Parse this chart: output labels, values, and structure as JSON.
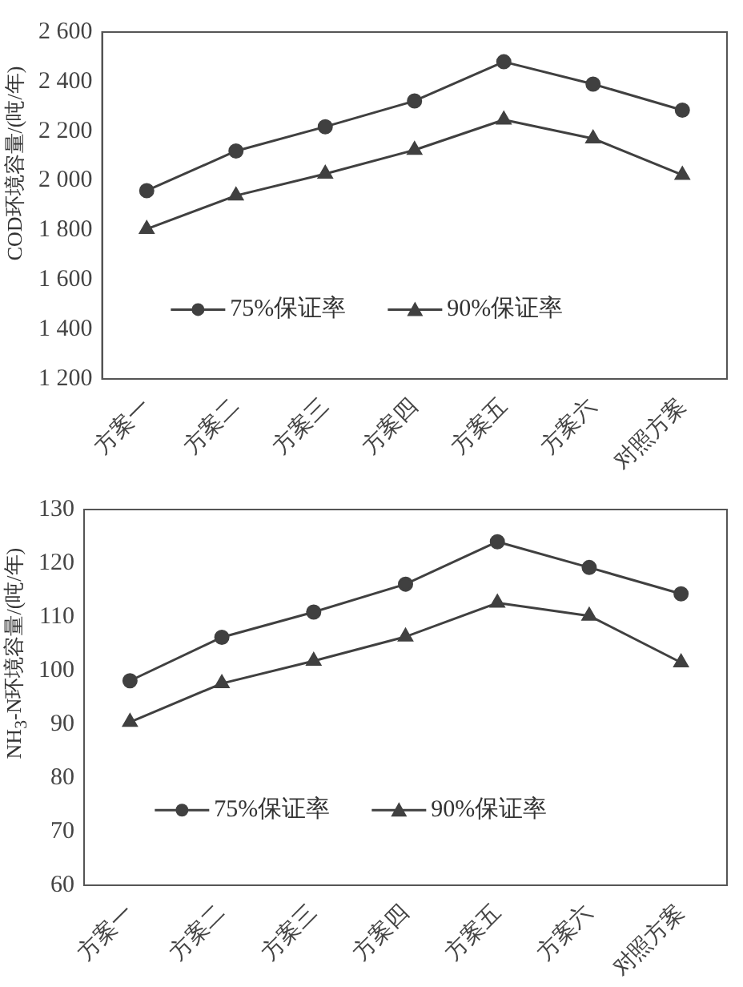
{
  "chart_data": [
    {
      "type": "line",
      "ylabel": "COD环境容量/(吨/年)",
      "categories": [
        "方案一",
        "方案二",
        "方案三",
        "方案四",
        "方案五",
        "方案六",
        "对照方案"
      ],
      "series": [
        {
          "name": "75%保证率",
          "color": "#404040",
          "marker": "circle",
          "values": [
            1960,
            2120,
            2218,
            2322,
            2480,
            2390,
            2285
          ]
        },
        {
          "name": "90%保证率",
          "color": "#404040",
          "marker": "triangle",
          "values": [
            1805,
            1940,
            2028,
            2124,
            2246,
            2170,
            2023
          ]
        }
      ],
      "ylim": [
        1200,
        2600
      ],
      "yticks": [
        {
          "value": 1200,
          "label": "1 200"
        },
        {
          "value": 1400,
          "label": "1 400"
        },
        {
          "value": 1600,
          "label": "1 600"
        },
        {
          "value": 1800,
          "label": "1 800"
        },
        {
          "value": 2000,
          "label": "2 000"
        },
        {
          "value": 2200,
          "label": "2 200"
        },
        {
          "value": 2400,
          "label": "2 400"
        },
        {
          "value": 2600,
          "label": "2 600"
        }
      ],
      "grid": false,
      "legend": "bottom",
      "line_style": "solid"
    },
    {
      "type": "line",
      "ylabel": "NH$_{3}$-N环境容量/(吨/年)",
      "categories": [
        "方案一",
        "方案二",
        "方案三",
        "方案四",
        "方案五",
        "方案六",
        "对照方案"
      ],
      "series": [
        {
          "name": "75%保证率",
          "color": "#404040",
          "marker": "circle",
          "values": [
            98.1,
            106.2,
            110.9,
            116.1,
            124.0,
            119.2,
            114.3
          ]
        },
        {
          "name": "90%保证率",
          "color": "#404040",
          "marker": "triangle",
          "values": [
            90.4,
            97.6,
            101.8,
            106.3,
            112.6,
            110.2,
            101.5
          ]
        }
      ],
      "ylim": [
        60,
        130
      ],
      "yticks": [
        60,
        70,
        80,
        90,
        100,
        110,
        120,
        130
      ],
      "grid": false,
      "legend": "bottom",
      "line_style": "solid"
    }
  ]
}
